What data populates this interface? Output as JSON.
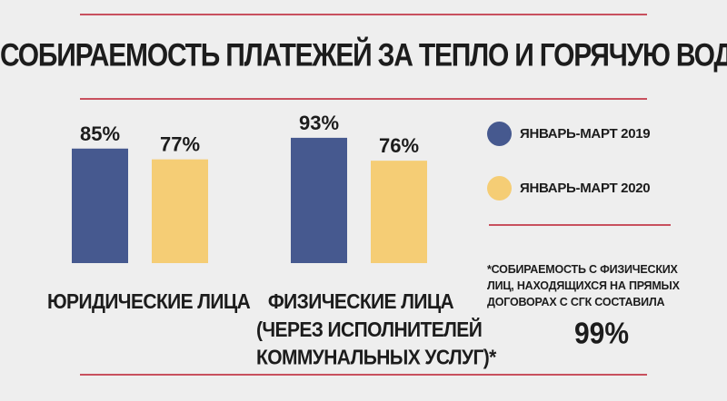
{
  "title": "СОБИРАЕМОСТЬ ПЛАТЕЖЕЙ ЗА ТЕПЛО И ГОРЯЧУЮ ВОДУ",
  "colors": {
    "series_2019": "#46598f",
    "series_2020": "#f5cd75",
    "accent_rule": "#c8505e",
    "background": "#eeeeee"
  },
  "chart_data": {
    "type": "bar",
    "title": "СОБИРАЕМОСТЬ ПЛАТЕЖЕЙ ЗА ТЕПЛО И ГОРЯЧУЮ ВОДУ",
    "categories": [
      "ЮРИДИЧЕСКИЕ ЛИЦА",
      "ФИЗИЧЕСКИЕ ЛИЦА (ЧЕРЕЗ ИСПОЛНИТЕЛЕЙ КОММУНАЛЬНЫХ УСЛУГ)*"
    ],
    "series": [
      {
        "name": "ЯНВАРЬ-МАРТ 2019",
        "values": [
          85,
          93
        ],
        "labels": [
          "85%",
          "93%"
        ]
      },
      {
        "name": "ЯНВАРЬ-МАРТ 2020",
        "values": [
          77,
          76
        ],
        "labels": [
          "77%",
          "76%"
        ]
      }
    ],
    "unit": "%",
    "xlabel": "",
    "ylabel": "",
    "grid": false,
    "legend_position": "right"
  },
  "groups": [
    {
      "label_lines": [
        "ЮРИДИЧЕСКИЕ ЛИЦА"
      ]
    },
    {
      "label_lines": [
        "ФИЗИЧЕСКИЕ ЛИЦА",
        "(ЧЕРЕЗ ИСПОЛНИТЕЛЕЙ",
        "КОММУНАЛЬНЫХ УСЛУГ)*"
      ]
    }
  ],
  "legend": [
    {
      "label": "ЯНВАРЬ-МАРТ 2019"
    },
    {
      "label": "ЯНВАРЬ-МАРТ 2020"
    }
  ],
  "footnote": {
    "lines": [
      "*СОБИРАЕМОСТЬ С ФИЗИЧЕСКИХ",
      "ЛИЦ, НАХОДЯЩИХСЯ НА ПРЯМЫХ",
      "ДОГОВОРАХ С СГК СОСТАВИЛА"
    ],
    "value": "99%"
  }
}
